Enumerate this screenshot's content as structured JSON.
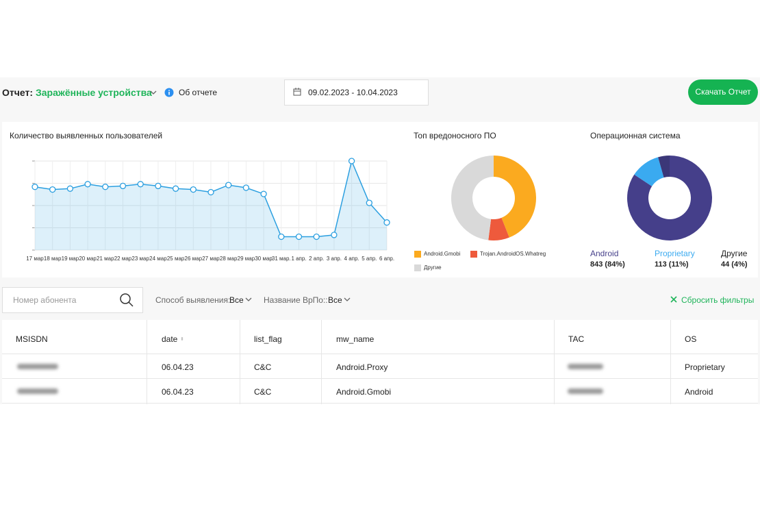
{
  "header": {
    "report_label": "Отчет:",
    "report_name": "Заражённые устройства",
    "about": "Об отчете",
    "date_range": "09.02.2023 - 10.04.2023",
    "download": "Скачать Отчет"
  },
  "chart_data": [
    {
      "type": "line",
      "title": "Количество выявленных пользователей",
      "categories": [
        "17 мар",
        "18 мар",
        "19 мар",
        "20 мар",
        "21 мар",
        "22 мар",
        "23 мар",
        "24 мар",
        "25 мар",
        "26 мар",
        "27 мар",
        "28 мар",
        "29 мар",
        "30 мар",
        "31 мар.",
        "1 апр.",
        "2 апр.",
        "3 апр.",
        "4 апр.",
        "5 апр.",
        "6 апр."
      ],
      "values": [
        71,
        68,
        69,
        74,
        71,
        72,
        74,
        72,
        69,
        68,
        65,
        73,
        70,
        63,
        15,
        15,
        15,
        17,
        100,
        53,
        31
      ],
      "color": "#2b9fe0",
      "ylim": [
        0,
        100
      ],
      "yticks": [
        0,
        25,
        50,
        75,
        100
      ],
      "grid": true
    },
    {
      "type": "pie",
      "title": "Топ вредоносного ПО",
      "categories": [
        "Android.Gmobi",
        "Trojan.AndroidOS.Whatreg",
        "Другие"
      ],
      "values": [
        44,
        8,
        48
      ],
      "colors": [
        "#fbaa1f",
        "#ee5a3c",
        "#d9d9d9"
      ]
    },
    {
      "type": "pie",
      "title": "Операционная система",
      "categories": [
        "Android",
        "Proprietary",
        "Другие"
      ],
      "values": [
        843,
        113,
        44
      ],
      "value_labels": [
        "843 (84%)",
        "113 (11%)",
        "44 (4%)"
      ],
      "colors": [
        "#453f8a",
        "#3aaaf0",
        "#3b3778"
      ]
    }
  ],
  "filters": {
    "search_placeholder": "Номер абонента",
    "method_label": "Способ выявления:",
    "method_value": "Все",
    "malware_label": "Название ВрПо::",
    "malware_value": "Все",
    "reset": "Сбросить фильтры"
  },
  "table": {
    "columns": [
      "MSISDN",
      "date",
      "list_flag",
      "mw_name",
      "TAC",
      "OS"
    ],
    "rows": [
      {
        "date": "06.04.23",
        "list_flag": "C&C",
        "mw_name": "Android.Proxy",
        "os": "Proprietary"
      },
      {
        "date": "06.04.23",
        "list_flag": "C&C",
        "mw_name": "Android.Gmobi",
        "os": "Android"
      }
    ]
  }
}
